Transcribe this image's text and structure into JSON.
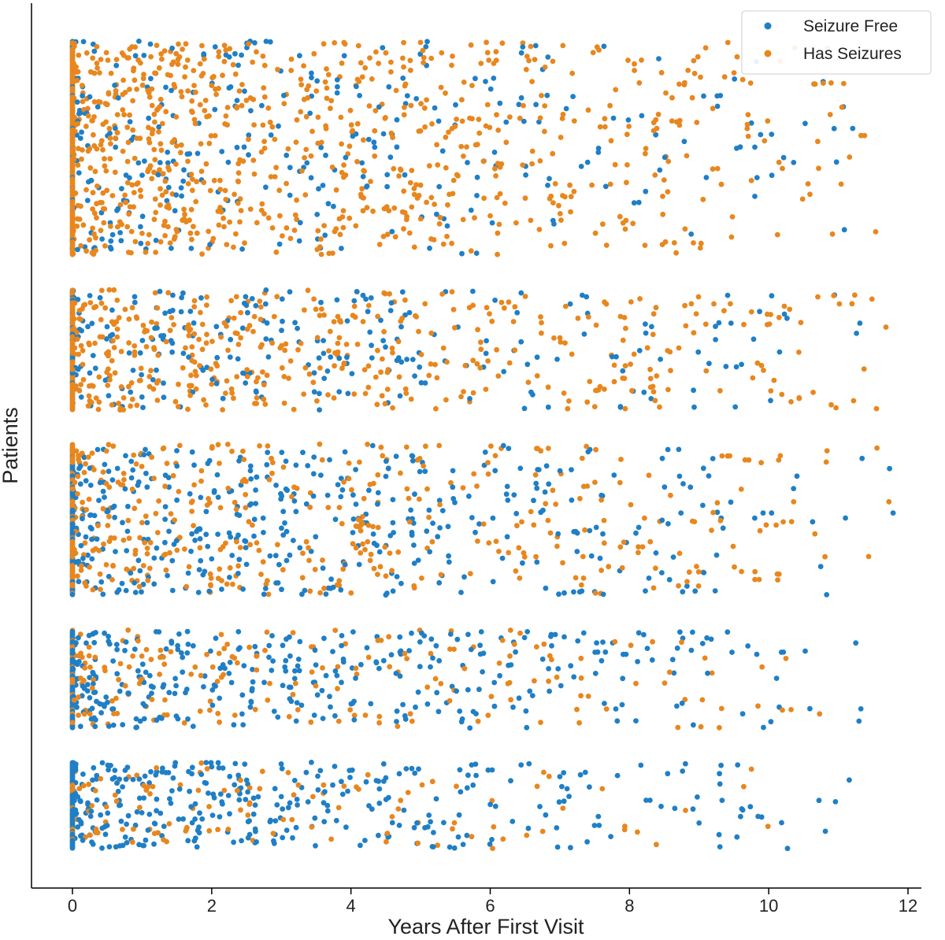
{
  "chart_data": {
    "type": "scatter",
    "title": "",
    "xlabel": "Years After First Visit",
    "ylabel": "Patients",
    "xlim": [
      -0.6,
      12.2
    ],
    "xticks": [
      0,
      2,
      4,
      6,
      8,
      10,
      12
    ],
    "xtick_labels": [
      "0",
      "2",
      "4",
      "6",
      "8",
      "10",
      "12"
    ],
    "yticks": [],
    "grid": false,
    "legend": {
      "placement": "top-right"
    },
    "colors": {
      "Seizure Free": "#1f7fc6",
      "Has Seizures": "#e8871e"
    },
    "series": [
      {
        "name": "Seizure Free"
      },
      {
        "name": "Has Seizures"
      }
    ],
    "patient_bands": [
      {
        "band": 1,
        "x_max_years": 11.9,
        "has_seizures_share": 0.92,
        "description_of_density": "dense near 0, sparser toward 12"
      },
      {
        "band": 2,
        "x_max_years": 11.9,
        "has_seizures_share": 0.75
      },
      {
        "band": 3,
        "x_max_years": 11.9,
        "has_seizures_share": 0.5
      },
      {
        "band": 4,
        "x_max_years": 11.8,
        "has_seizures_share": 0.28
      },
      {
        "band": 5,
        "x_max_years": 11.7,
        "has_seizures_share": 0.1
      }
    ]
  }
}
